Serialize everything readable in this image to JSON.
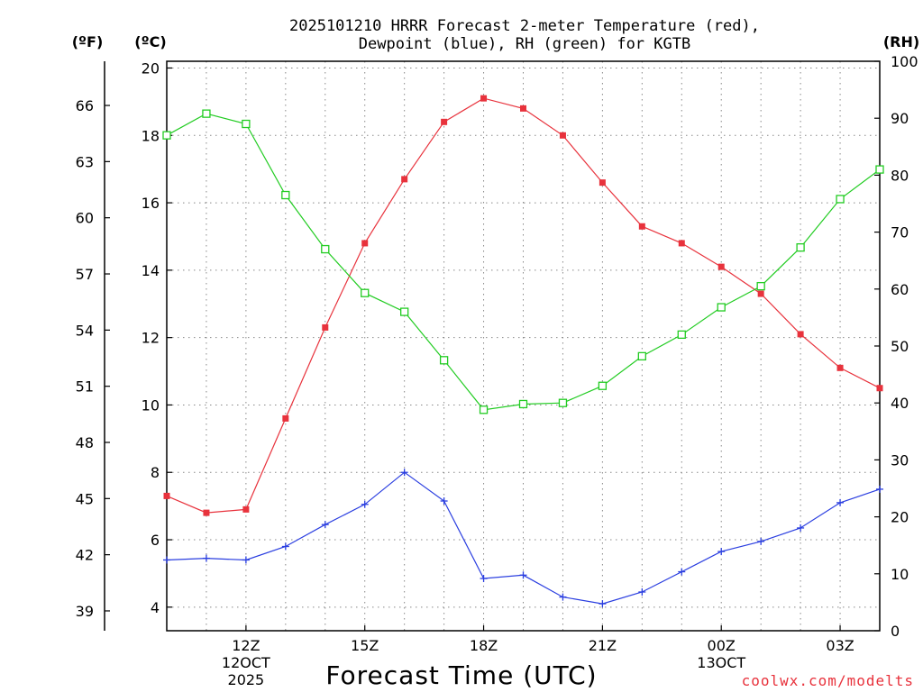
{
  "chart_data": {
    "type": "line",
    "title_line1": "2025101210 HRRR Forecast 2-meter Temperature (red),",
    "title_line2": "Dewpoint (blue), RH (green) for KGTB",
    "xlabel": "Forecast Time (UTC)",
    "credit": "coolwx.com/modelts",
    "units": {
      "fahrenheit": "(ºF)",
      "celsius": "(ºC)",
      "rh": "(RH)"
    },
    "x_hours": [
      10,
      11,
      12,
      13,
      14,
      15,
      16,
      17,
      18,
      19,
      20,
      21,
      22,
      23,
      24,
      25,
      26,
      27,
      28
    ],
    "xlim": [
      10,
      28
    ],
    "x_ticks": [
      {
        "hour": 12,
        "lines": [
          "12Z",
          "12OCT",
          "2025"
        ]
      },
      {
        "hour": 15,
        "lines": [
          "15Z"
        ]
      },
      {
        "hour": 18,
        "lines": [
          "18Z"
        ]
      },
      {
        "hour": 21,
        "lines": [
          "21Z"
        ]
      },
      {
        "hour": 24,
        "lines": [
          "00Z",
          "13OCT"
        ]
      },
      {
        "hour": 27,
        "lines": [
          "03Z"
        ]
      }
    ],
    "celsius_axis": {
      "ylim": [
        3.3,
        20.2
      ],
      "ticks": [
        "4",
        "6",
        "8",
        "10",
        "12",
        "14",
        "16",
        "18",
        "20"
      ]
    },
    "fahrenheit_ticks": [
      "39",
      "42",
      "45",
      "48",
      "51",
      "54",
      "57",
      "60",
      "63",
      "66"
    ],
    "rh_axis": {
      "ylim": [
        0,
        100
      ],
      "ticks": [
        "0",
        "10",
        "20",
        "30",
        "40",
        "50",
        "60",
        "70",
        "80",
        "90",
        "100"
      ]
    },
    "series": [
      {
        "name": "2-meter Temperature",
        "axis": "celsius",
        "color": "#e8323c",
        "marker": "filled-square",
        "values": [
          7.3,
          6.8,
          6.9,
          9.6,
          12.3,
          14.8,
          16.7,
          18.4,
          19.1,
          18.8,
          18.0,
          16.6,
          15.3,
          14.8,
          14.1,
          13.3,
          12.1,
          11.1,
          10.5
        ]
      },
      {
        "name": "Dewpoint",
        "axis": "celsius",
        "color": "#2a3ee0",
        "marker": "plus",
        "values": [
          5.4,
          5.45,
          5.4,
          5.8,
          6.45,
          7.05,
          8.0,
          7.15,
          4.85,
          4.95,
          4.3,
          4.1,
          4.45,
          5.05,
          5.65,
          5.95,
          6.35,
          7.1,
          7.5
        ]
      },
      {
        "name": "RH",
        "axis": "rh",
        "color": "#22cc22",
        "marker": "open-square",
        "values": [
          87,
          90.8,
          89,
          76.5,
          67,
          59.3,
          56,
          47.5,
          38.8,
          39.8,
          40,
          43,
          48.2,
          52,
          56.8,
          60.5,
          67.3,
          75.8,
          81
        ]
      }
    ]
  }
}
